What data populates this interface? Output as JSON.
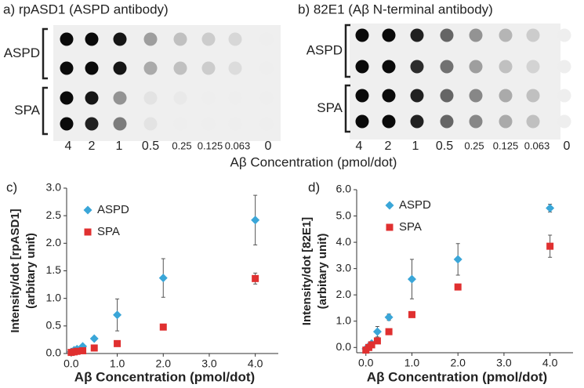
{
  "blots": {
    "xlabel": "Aβ Concentration (pmol/dot)",
    "lanes": [
      "4",
      "2",
      "1",
      "0.5",
      "0.25",
      "0.125",
      "0.063",
      "0"
    ],
    "panels": [
      {
        "title": "a) rpASD1 (ASPD antibody)",
        "groups": [
          {
            "label": "ASPD",
            "dot_intensity": [
              [
                1,
                1,
                0.95,
                0.35,
                0.2,
                0.15,
                0.1,
                0
              ],
              [
                1,
                1,
                0.95,
                0.3,
                0.2,
                0.15,
                0.08,
                0
              ]
            ]
          },
          {
            "label": "SPA",
            "dot_intensity": [
              [
                1,
                0.95,
                0.4,
                0.05,
                0.02,
                0,
                0,
                0
              ],
              [
                1,
                0.9,
                0.5,
                0.05,
                0,
                0,
                0,
                0
              ]
            ]
          }
        ]
      },
      {
        "title": "b) 82E1 (Aβ N-terminal antibody)",
        "groups": [
          {
            "label": "ASPD",
            "dot_intensity": [
              [
                1,
                1,
                0.9,
                0.6,
                0.4,
                0.25,
                0.15,
                0
              ],
              [
                1,
                1,
                0.85,
                0.55,
                0.35,
                0.2,
                0.12,
                0
              ]
            ]
          },
          {
            "label": "SPA",
            "dot_intensity": [
              [
                1,
                1,
                0.9,
                0.6,
                0.45,
                0.3,
                0.2,
                0
              ],
              [
                1,
                1,
                0.9,
                0.6,
                0.45,
                0.3,
                0.2,
                0
              ]
            ]
          }
        ]
      }
    ]
  },
  "chart_data": [
    {
      "type": "scatter",
      "panel_label": "c)",
      "xlabel": "Aβ Concentration (pmol/dot)",
      "ylabel": [
        "Intensity/dot [rpASD1]",
        "(arbitary unit)"
      ],
      "x": [
        0,
        0.063,
        0.125,
        0.25,
        0.5,
        1,
        2,
        4
      ],
      "xlim": [
        -0.1,
        4.5
      ],
      "xticks": [
        {
          "value": 0,
          "label": "0.0"
        },
        {
          "value": 1,
          "label": "1.0"
        },
        {
          "value": 2,
          "label": "2.0"
        },
        {
          "value": 3,
          "label": "3.0"
        },
        {
          "value": 4,
          "label": "4.0"
        }
      ],
      "ylim": [
        0,
        3
      ],
      "yticks": [
        {
          "value": 0,
          "label": "0.0"
        },
        0.5,
        {
          "value": 1,
          "label": "1.0"
        },
        1.5,
        {
          "value": 2,
          "label": "2.0"
        },
        2.5,
        {
          "value": 3,
          "label": "3.0"
        }
      ],
      "series": [
        {
          "name": "ASPD",
          "color": "#3aa6d8",
          "marker": "diamond",
          "values": [
            0.03,
            0.06,
            0.08,
            0.13,
            0.27,
            0.7,
            1.37,
            2.42
          ],
          "errors": [
            0.01,
            0.02,
            0.02,
            0.02,
            0.03,
            0.29,
            0.35,
            0.45
          ]
        },
        {
          "name": "SPA",
          "color": "#e03030",
          "marker": "square",
          "values": [
            0.02,
            0.03,
            0.04,
            0.05,
            0.1,
            0.18,
            0.48,
            1.36
          ],
          "errors": [
            0.01,
            0.01,
            0.01,
            0.01,
            0.02,
            0.02,
            0.03,
            0.1
          ]
        }
      ]
    },
    {
      "type": "scatter",
      "panel_label": "d)",
      "xlabel": "Aβ Concentration (pmol/dot)",
      "ylabel": [
        "Intensity/dot [82E1]",
        "(arbitary unit)"
      ],
      "x": [
        0,
        0.063,
        0.125,
        0.25,
        0.5,
        1,
        2,
        4
      ],
      "xlim": [
        -0.2,
        4.5
      ],
      "xticks": [
        {
          "value": 0,
          "label": "0.0"
        },
        {
          "value": 1,
          "label": "1.0"
        },
        {
          "value": 2,
          "label": "2.0"
        },
        {
          "value": 3,
          "label": "3.0"
        },
        {
          "value": 4,
          "label": "4.0"
        }
      ],
      "ylim": [
        -0.2,
        6
      ],
      "yticks": [
        {
          "value": 0,
          "label": "0.0"
        },
        {
          "value": 1,
          "label": "1.0"
        },
        {
          "value": 2,
          "label": "2.0"
        },
        {
          "value": 3,
          "label": "3.0"
        },
        {
          "value": 4,
          "label": "4.0"
        },
        {
          "value": 5,
          "label": "5.0"
        },
        {
          "value": 6,
          "label": "6.0"
        }
      ],
      "series": [
        {
          "name": "ASPD",
          "color": "#3aa6d8",
          "marker": "diamond",
          "values": [
            -0.05,
            0.05,
            0.15,
            0.6,
            1.15,
            2.6,
            3.35,
            5.3
          ],
          "errors": [
            0.02,
            0.05,
            0.05,
            0.2,
            0.12,
            0.75,
            0.6,
            0.15
          ]
        },
        {
          "name": "SPA",
          "color": "#e03030",
          "marker": "square",
          "values": [
            -0.1,
            0,
            0.1,
            0.25,
            0.6,
            1.25,
            2.3,
            3.85
          ],
          "errors": [
            0.02,
            0.02,
            0.02,
            0.03,
            0.05,
            0.05,
            0.05,
            0.42
          ]
        }
      ]
    }
  ]
}
